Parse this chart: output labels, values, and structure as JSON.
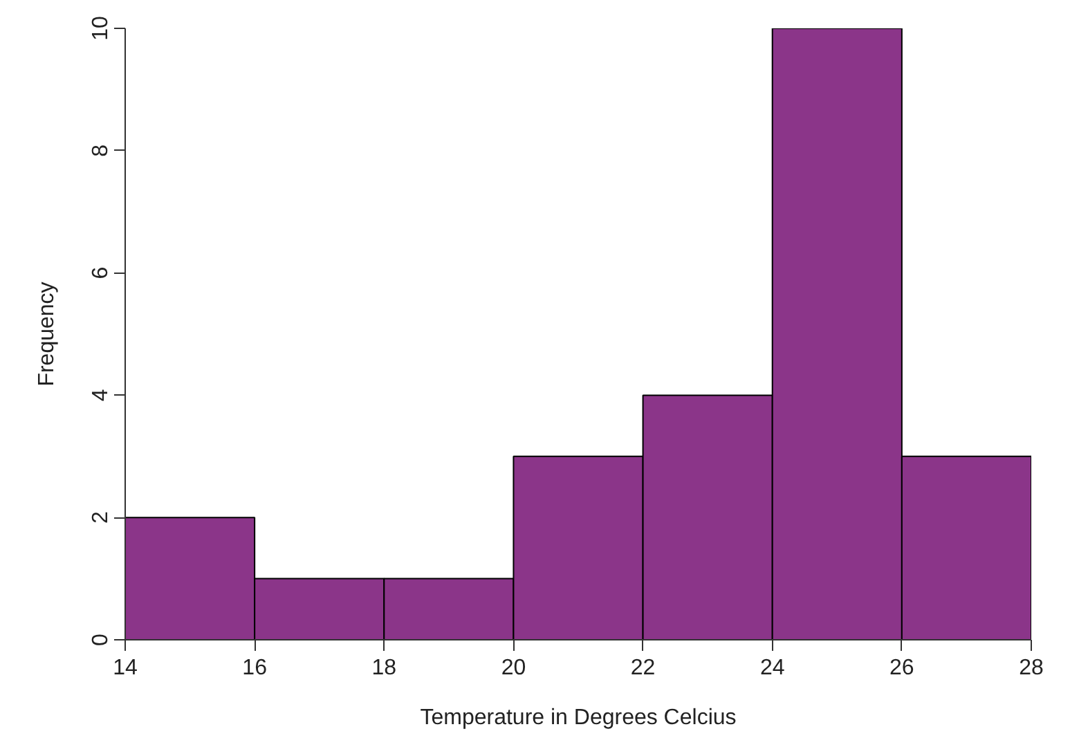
{
  "chart_data": {
    "type": "histogram",
    "xlabel": "Temperature in Degrees Celcius",
    "ylabel": "Frequency",
    "bins": [
      14,
      16,
      18,
      20,
      22,
      24,
      26,
      28
    ],
    "values": [
      2,
      1,
      1,
      3,
      4,
      10,
      3
    ],
    "color": "#8b3589",
    "xlim": [
      14,
      28
    ],
    "ylim": [
      0,
      10
    ],
    "xticks": [
      14,
      16,
      18,
      20,
      22,
      24,
      26,
      28
    ],
    "yticks": [
      0,
      2,
      4,
      6,
      8,
      10
    ],
    "grid": false
  }
}
